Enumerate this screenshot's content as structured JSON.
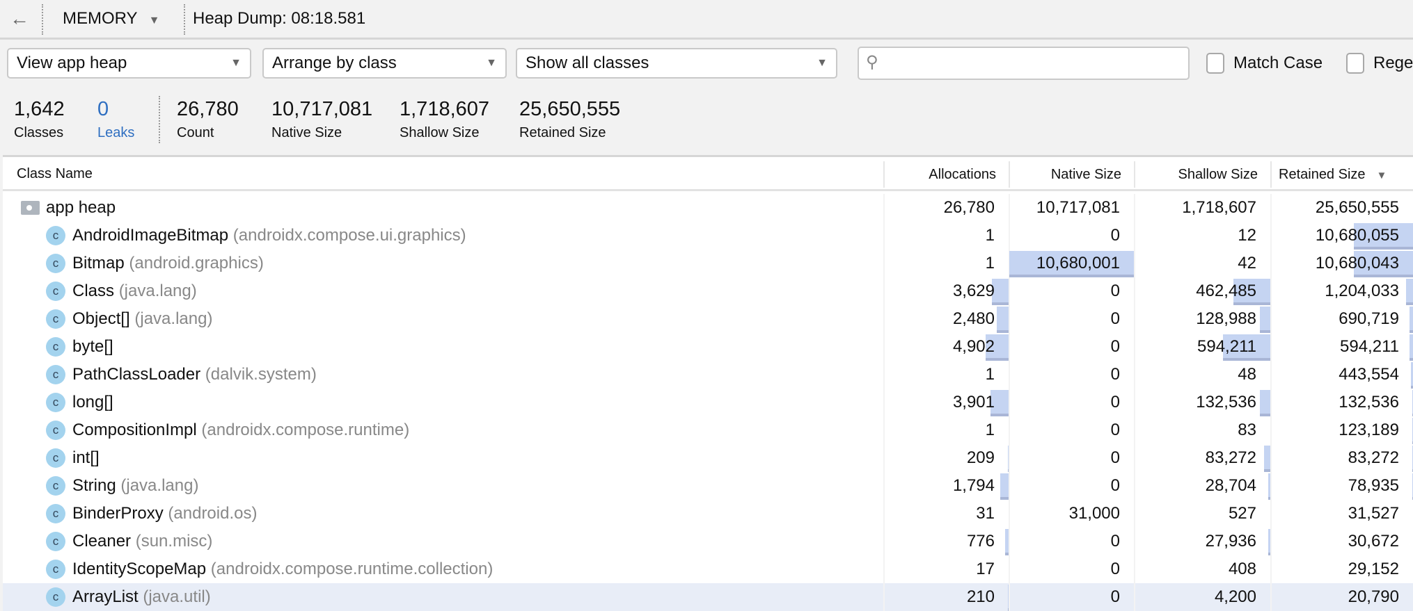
{
  "topbar": {
    "back_icon": "arrow-left-icon",
    "profiler": "MEMORY",
    "title": "Heap Dump: 08:18.581"
  },
  "filters": {
    "heap": "View app heap",
    "arrange": "Arrange by class",
    "show": "Show all classes",
    "search_placeholder": "",
    "match_case": "Match Case",
    "regex": "Regex"
  },
  "stats": [
    {
      "value": "1,642",
      "label": "Classes"
    },
    {
      "value": "0",
      "label": "Leaks"
    },
    {
      "value": "26,780",
      "label": "Count"
    },
    {
      "value": "10,717,081",
      "label": "Native Size"
    },
    {
      "value": "1,718,607",
      "label": "Shallow Size"
    },
    {
      "value": "25,650,555",
      "label": "Retained Size"
    }
  ],
  "colors": {
    "accent": "#2f6fc1",
    "bar": "#c5d4f2",
    "class_icon": "#a3d3ee",
    "selected_row": "#e8edf7"
  },
  "table": {
    "columns": [
      "Class Name",
      "Allocations",
      "Native Size",
      "Shallow Size",
      "Retained Size"
    ],
    "sort": "Retained Size descending",
    "root": {
      "name": "app heap",
      "values": [
        "26,780",
        "10,717,081",
        "1,718,607",
        "25,650,555"
      ]
    },
    "rows": [
      {
        "name": "AndroidImageBitmap",
        "pkg": "(androidx.compose.ui.graphics)",
        "values": [
          "1",
          "0",
          "12",
          "10,680,055"
        ]
      },
      {
        "name": "Bitmap",
        "pkg": "(android.graphics)",
        "values": [
          "1",
          "10,680,001",
          "42",
          "10,680,043"
        ]
      },
      {
        "name": "Class",
        "pkg": "(java.lang)",
        "values": [
          "3,629",
          "0",
          "462,485",
          "1,204,033"
        ]
      },
      {
        "name": "Object[]",
        "pkg": "(java.lang)",
        "values": [
          "2,480",
          "0",
          "128,988",
          "690,719"
        ]
      },
      {
        "name": "byte[]",
        "pkg": "",
        "values": [
          "4,902",
          "0",
          "594,211",
          "594,211"
        ]
      },
      {
        "name": "PathClassLoader",
        "pkg": "(dalvik.system)",
        "values": [
          "1",
          "0",
          "48",
          "443,554"
        ]
      },
      {
        "name": "long[]",
        "pkg": "",
        "values": [
          "3,901",
          "0",
          "132,536",
          "132,536"
        ]
      },
      {
        "name": "CompositionImpl",
        "pkg": "(androidx.compose.runtime)",
        "values": [
          "1",
          "0",
          "83",
          "123,189"
        ]
      },
      {
        "name": "int[]",
        "pkg": "",
        "values": [
          "209",
          "0",
          "83,272",
          "83,272"
        ]
      },
      {
        "name": "String",
        "pkg": "(java.lang)",
        "values": [
          "1,794",
          "0",
          "28,704",
          "78,935"
        ]
      },
      {
        "name": "BinderProxy",
        "pkg": "(android.os)",
        "values": [
          "31",
          "31,000",
          "527",
          "31,527"
        ]
      },
      {
        "name": "Cleaner",
        "pkg": "(sun.misc)",
        "values": [
          "776",
          "0",
          "27,936",
          "30,672"
        ]
      },
      {
        "name": "IdentityScopeMap",
        "pkg": "(androidx.compose.runtime.collection)",
        "values": [
          "17",
          "0",
          "408",
          "29,152"
        ]
      },
      {
        "name": "ArrayList",
        "pkg": "(java.util)",
        "values": [
          "210",
          "0",
          "4,200",
          "20,790"
        ],
        "selected": true
      }
    ]
  }
}
